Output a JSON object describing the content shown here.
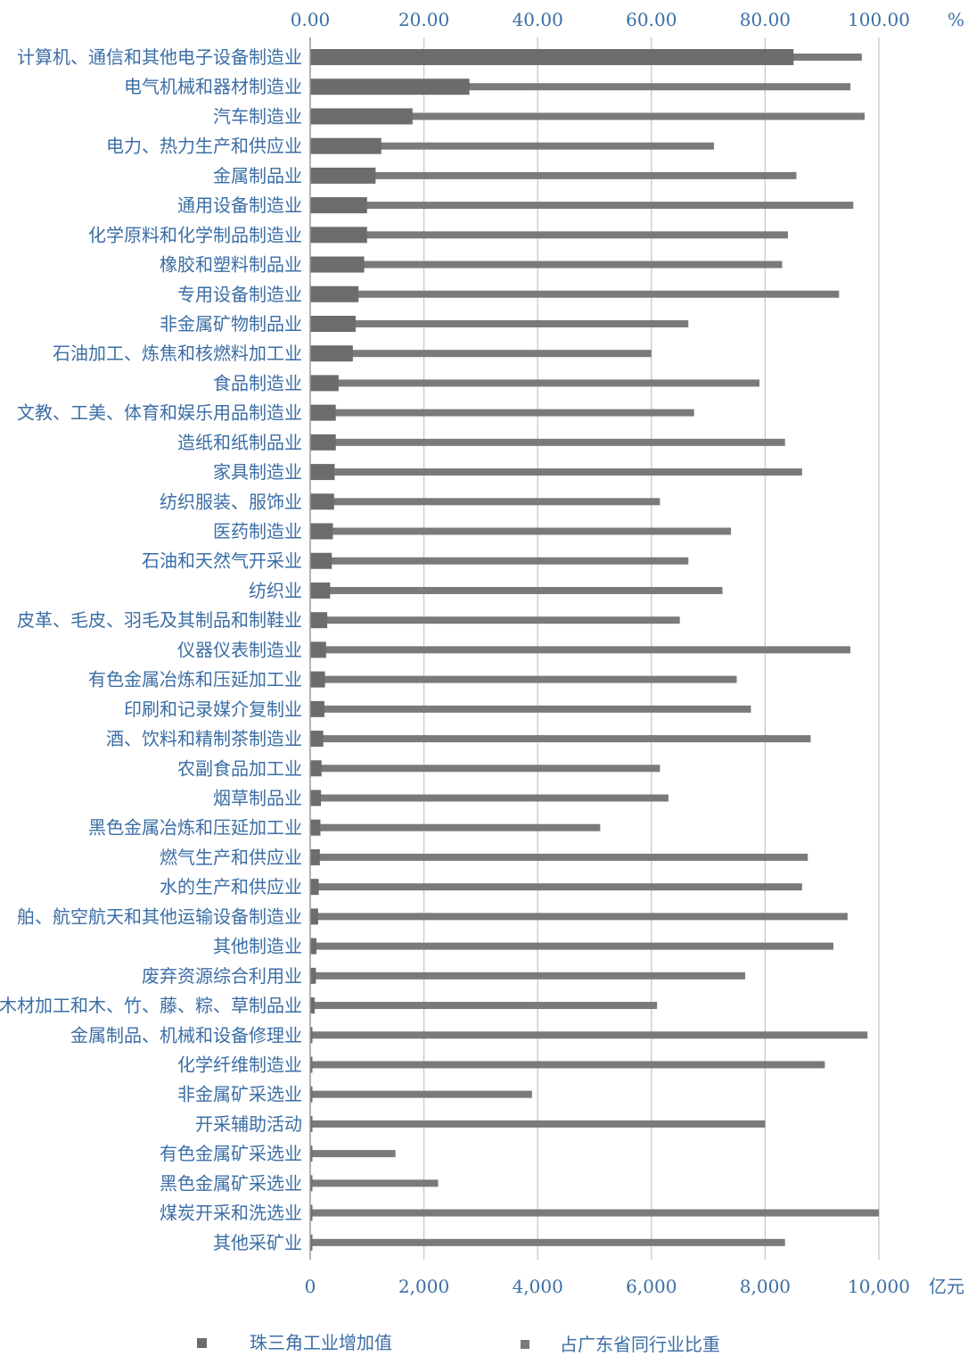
{
  "chart_data": {
    "type": "bar",
    "orientation": "horizontal",
    "categories": [
      "计算机、通信和其他电子设备制造业",
      "电气机械和器材制造业",
      "汽车制造业",
      "电力、热力生产和供应业",
      "金属制品业",
      "通用设备制造业",
      "化学原料和化学制品制造业",
      "橡胶和塑料制品业",
      "专用设备制造业",
      "非金属矿物制品业",
      "石油加工、炼焦和核燃料加工业",
      "食品制造业",
      "文教、工美、体育和娱乐用品制造业",
      "造纸和纸制品业",
      "家具制造业",
      "纺织服装、服饰业",
      "医药制造业",
      "石油和天然气开采业",
      "纺织业",
      "皮革、毛皮、羽毛及其制品和制鞋业",
      "仪器仪表制造业",
      "有色金属冶炼和压延加工业",
      "印刷和记录媒介复制业",
      "酒、饮料和精制茶制造业",
      "农副食品加工业",
      "烟草制品业",
      "黑色金属冶炼和压延加工业",
      "燃气生产和供应业",
      "水的生产和供应业",
      "舶、航空航天和其他运输设备制造业",
      "其他制造业",
      "废弃资源综合利用业",
      "木材加工和木、竹、藤、粽、草制品业",
      "金属制品、机械和设备修理业",
      "化学纤维制造业",
      "非金属矿采选业",
      "开采辅助活动",
      "有色金属矿采选业",
      "黑色金属矿采选业",
      "煤炭开采和洗选业",
      "其他采矿业"
    ],
    "series": [
      {
        "name": "珠三角工业增加值",
        "axis": "bottom",
        "unit": "亿元",
        "values": [
          8500,
          2800,
          1800,
          1250,
          1150,
          1000,
          1000,
          950,
          850,
          800,
          750,
          500,
          450,
          450,
          430,
          420,
          400,
          380,
          350,
          300,
          280,
          260,
          250,
          230,
          200,
          190,
          180,
          170,
          150,
          140,
          110,
          100,
          80,
          30,
          20,
          10,
          10,
          5,
          5,
          5,
          5
        ]
      },
      {
        "name": "占广东省同行业比重",
        "axis": "top",
        "unit": "%",
        "values": [
          97,
          95,
          97.5,
          71,
          85.5,
          95.5,
          84,
          83,
          93,
          66.5,
          60,
          79,
          67.5,
          83.5,
          86.5,
          61.5,
          74,
          66.5,
          72.5,
          65,
          95,
          75,
          77.5,
          88,
          61.5,
          63,
          51,
          87.5,
          86.5,
          94.5,
          92,
          76.5,
          61,
          98,
          90.5,
          39,
          80,
          15,
          22.5,
          100,
          83.5
        ]
      }
    ],
    "axes": {
      "top": {
        "min": 0,
        "max": 100,
        "ticks": [
          "0.00",
          "20.00",
          "40.00",
          "60.00",
          "80.00",
          "100.00"
        ],
        "unit": "%"
      },
      "bottom": {
        "min": 0,
        "max": 10000,
        "ticks": [
          "0",
          "2,000",
          "4,000",
          "6,000",
          "8,000",
          "10,000"
        ],
        "unit": "亿元"
      }
    },
    "grid": true,
    "legend_position": "bottom",
    "colors": {
      "share": "#7a7a7a",
      "value": "#6c6c6c",
      "text": "#3b6ea5",
      "grid": "#c8c8c8"
    }
  }
}
